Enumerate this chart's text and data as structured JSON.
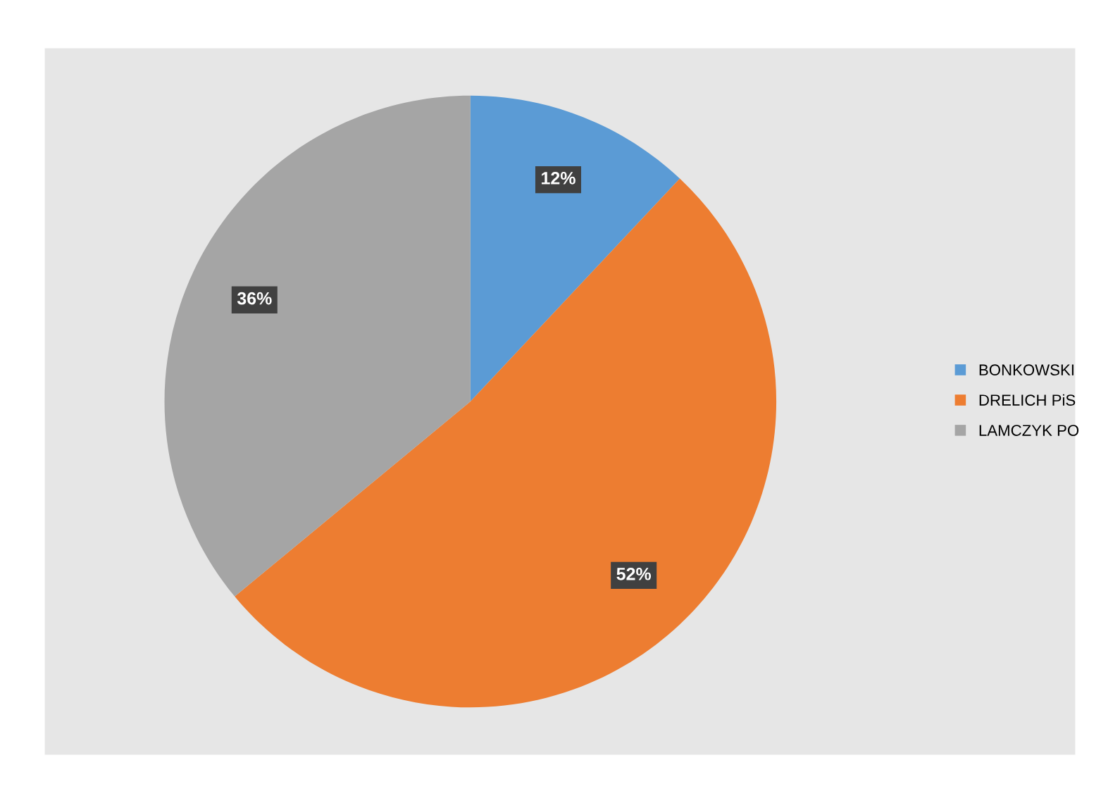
{
  "chart_data": {
    "type": "pie",
    "categories": [
      "BONKOWSKI",
      "DRELICH PiS",
      "LAMCZYK PO"
    ],
    "values": [
      12,
      52,
      36
    ],
    "value_labels": [
      "12%",
      "52%",
      "36%"
    ],
    "colors": [
      "#5b9bd5",
      "#ed7d31",
      "#a5a5a5"
    ],
    "legend": "right"
  }
}
